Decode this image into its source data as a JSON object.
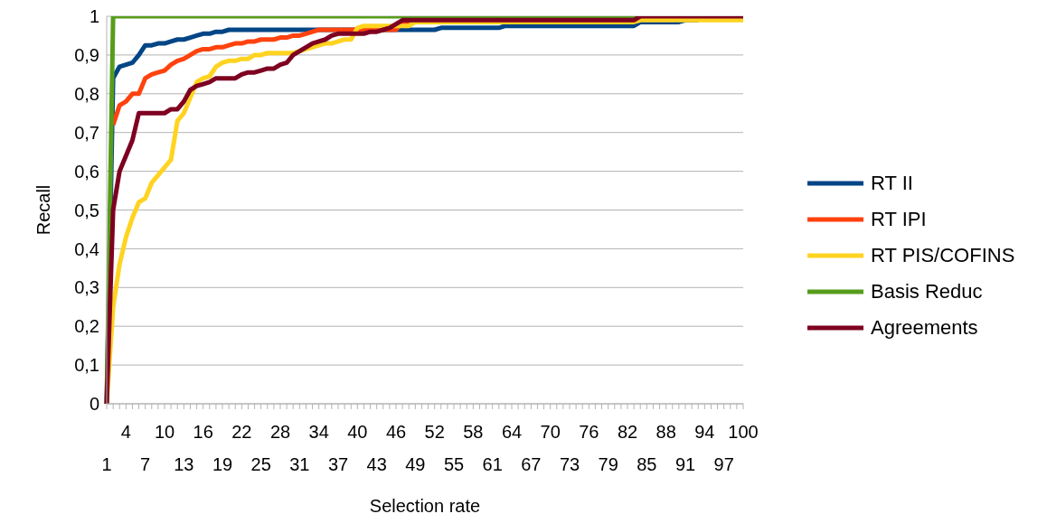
{
  "chart_data": {
    "type": "line",
    "xlabel": "Selection rate",
    "ylabel": "Recall",
    "categories": [
      "1",
      null,
      null,
      "4",
      null,
      null,
      "7",
      null,
      null,
      "10",
      null,
      null,
      "13",
      null,
      null,
      "16",
      null,
      null,
      "19",
      null,
      null,
      "22",
      null,
      null,
      "25",
      null,
      null,
      "28",
      null,
      null,
      "31",
      null,
      null,
      "34",
      null,
      null,
      "37",
      null,
      null,
      "40",
      null,
      null,
      "43",
      null,
      null,
      "46",
      null,
      null,
      "49",
      null,
      null,
      "52",
      null,
      null,
      "55",
      null,
      null,
      "58",
      null,
      null,
      "61",
      null,
      null,
      "64",
      null,
      null,
      "67",
      null,
      null,
      "70",
      null,
      null,
      "73",
      null,
      null,
      "76",
      null,
      null,
      "79",
      null,
      null,
      "82",
      null,
      null,
      "85",
      null,
      null,
      "88",
      null,
      null,
      "91",
      null,
      null,
      "94",
      null,
      null,
      "97",
      null,
      null,
      "100"
    ],
    "series": [
      {
        "name": "RT II",
        "color": "#004586",
        "values": [
          0,
          0.84,
          0.87,
          0.875,
          0.88,
          0.9,
          0.925,
          0.925,
          0.93,
          0.93,
          0.935,
          0.94,
          0.94,
          0.945,
          0.95,
          0.955,
          0.955,
          0.96,
          0.96,
          0.965,
          0.965,
          0.965,
          0.965,
          0.965,
          0.965,
          0.965,
          0.965,
          0.965,
          0.965,
          0.965,
          0.965,
          0.965,
          0.965,
          0.965,
          0.965,
          0.965,
          0.965,
          0.965,
          0.965,
          0.965,
          0.965,
          0.965,
          0.965,
          0.965,
          0.965,
          0.965,
          0.965,
          0.965,
          0.965,
          0.965,
          0.965,
          0.965,
          0.97,
          0.97,
          0.97,
          0.97,
          0.97,
          0.97,
          0.97,
          0.97,
          0.97,
          0.97,
          0.975,
          0.975,
          0.975,
          0.975,
          0.975,
          0.975,
          0.975,
          0.975,
          0.975,
          0.975,
          0.975,
          0.975,
          0.975,
          0.975,
          0.975,
          0.975,
          0.975,
          0.975,
          0.975,
          0.975,
          0.975,
          0.985,
          0.985,
          0.985,
          0.985,
          0.985,
          0.985,
          0.985,
          0.99,
          0.99,
          0.99,
          null,
          null,
          null,
          null,
          null,
          null,
          null
        ]
      },
      {
        "name": "RT IPI",
        "color": "#ff420e",
        "values": [
          null,
          0.72,
          0.77,
          0.78,
          0.8,
          0.8,
          0.84,
          0.85,
          0.855,
          0.86,
          0.875,
          0.885,
          0.89,
          0.9,
          0.91,
          0.915,
          0.915,
          0.92,
          0.92,
          0.925,
          0.93,
          0.93,
          0.935,
          0.935,
          0.94,
          0.94,
          0.94,
          0.945,
          0.945,
          0.95,
          0.95,
          0.955,
          0.96,
          0.965,
          0.965,
          0.965,
          0.965,
          0.965,
          0.965,
          0.965,
          0.965,
          0.965,
          0.965,
          0.965,
          0.965,
          0.965,
          0.985,
          0.985,
          0.985,
          null,
          null,
          null,
          null,
          null,
          null,
          null,
          null,
          null,
          null,
          null,
          null,
          null,
          null,
          null,
          null,
          null,
          null,
          null,
          null,
          null,
          null,
          null,
          null,
          null,
          null,
          null,
          null,
          null,
          null,
          null,
          null,
          null,
          null,
          null,
          null,
          null,
          null,
          null,
          null,
          null,
          null,
          null,
          null,
          null,
          null,
          null,
          null,
          null,
          null,
          null
        ]
      },
      {
        "name": "RT PIS/COFINS",
        "color": "#ffd320",
        "values": [
          0,
          0.25,
          0.36,
          0.43,
          0.48,
          0.52,
          0.53,
          0.57,
          0.59,
          0.61,
          0.63,
          0.73,
          0.75,
          0.79,
          0.83,
          0.84,
          0.845,
          0.87,
          0.88,
          0.885,
          0.885,
          0.89,
          0.89,
          0.9,
          0.9,
          0.905,
          0.905,
          0.905,
          0.905,
          0.905,
          0.91,
          0.915,
          0.92,
          0.925,
          0.93,
          0.93,
          0.935,
          0.94,
          0.94,
          0.97,
          0.975,
          0.975,
          0.975,
          0.975,
          0.975,
          0.975,
          0.975,
          0.975,
          0.985,
          0.985,
          0.985,
          0.985,
          0.985,
          0.985,
          0.985,
          0.985,
          0.985,
          0.985,
          0.985,
          0.985,
          0.985,
          0.985,
          0.985,
          0.985,
          0.985,
          0.985,
          0.985,
          0.985,
          0.985,
          0.985,
          0.985,
          0.985,
          0.985,
          0.985,
          0.985,
          0.985,
          0.985,
          0.985,
          0.985,
          0.985,
          0.985,
          0.985,
          0.985,
          0.99,
          0.99,
          0.99,
          0.99,
          0.99,
          0.99,
          0.99,
          0.99,
          0.99,
          0.99,
          0.99,
          0.99,
          0.99,
          0.99,
          0.99,
          0.99,
          0.99
        ]
      },
      {
        "name": "Basis Reduc",
        "color": "#579d1c",
        "values": [
          0,
          1,
          1,
          1,
          1,
          1,
          1,
          1,
          1,
          1,
          1,
          1,
          1,
          1,
          1,
          1,
          1,
          1,
          1,
          1,
          1,
          1,
          1,
          1,
          1,
          1,
          1,
          1,
          1,
          1,
          1,
          1,
          1,
          1,
          1,
          1,
          1,
          1,
          1,
          1,
          1,
          1,
          1,
          1,
          1,
          1,
          1,
          1,
          1,
          1,
          1,
          1,
          1,
          1,
          1,
          1,
          1,
          1,
          1,
          1,
          1,
          1,
          1,
          1,
          1,
          1,
          1,
          1,
          1,
          1,
          1,
          1,
          1,
          1,
          1,
          1,
          1,
          1,
          1,
          1,
          1,
          1,
          1,
          1,
          null,
          null,
          null,
          null,
          null,
          null,
          null,
          null,
          null,
          null,
          null,
          null,
          null,
          null,
          null,
          null
        ]
      },
      {
        "name": "Agreements",
        "color": "#7e0021",
        "values": [
          0,
          0.5,
          0.6,
          0.64,
          0.68,
          0.75,
          0.75,
          0.75,
          0.75,
          0.75,
          0.76,
          0.76,
          0.78,
          0.81,
          0.82,
          0.825,
          0.83,
          0.84,
          0.84,
          0.84,
          0.84,
          0.85,
          0.855,
          0.855,
          0.86,
          0.865,
          0.865,
          0.875,
          0.88,
          0.9,
          0.91,
          0.92,
          0.93,
          0.935,
          0.94,
          0.95,
          0.955,
          0.955,
          0.955,
          0.955,
          0.955,
          0.96,
          0.96,
          0.965,
          0.97,
          0.98,
          0.99,
          0.99,
          0.99,
          0.99,
          0.99,
          0.99,
          0.99,
          0.99,
          0.99,
          0.99,
          0.99,
          0.99,
          0.99,
          0.99,
          0.99,
          0.99,
          0.99,
          0.99,
          0.99,
          0.99,
          0.99,
          0.99,
          0.99,
          0.99,
          0.99,
          0.99,
          0.99,
          0.99,
          0.99,
          0.99,
          0.99,
          0.99,
          0.99,
          0.99,
          0.99,
          0.99,
          0.99,
          1,
          1,
          1,
          1,
          1,
          1,
          1,
          1,
          1,
          1,
          1,
          1,
          1,
          1,
          1,
          1,
          1
        ]
      }
    ],
    "ylim": [
      0,
      1
    ],
    "yticks": [
      0,
      {
        "value": 0.1,
        "label": "0,1"
      },
      {
        "value": 0.2,
        "label": "0,2"
      },
      {
        "value": 0.3,
        "label": "0,3"
      },
      {
        "value": 0.4,
        "label": "0,4"
      },
      {
        "value": 0.5,
        "label": "0,5"
      },
      {
        "value": 0.6,
        "label": "0,6"
      },
      {
        "value": 0.7,
        "label": "0,7"
      },
      {
        "value": 0.8,
        "label": "0,8"
      },
      {
        "value": 0.9,
        "label": "0,9"
      },
      1
    ],
    "grid": "y",
    "legend": "right",
    "marker": "none",
    "line_style": "solid"
  }
}
